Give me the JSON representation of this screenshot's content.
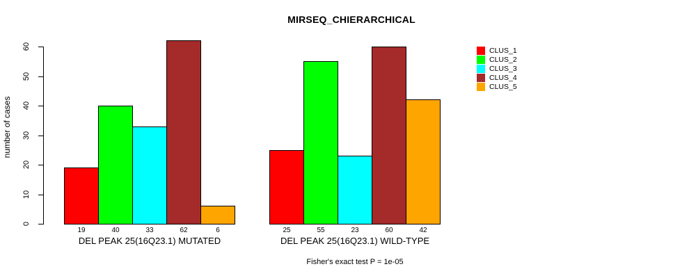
{
  "title": "MIRSEQ_CHIERARCHICAL",
  "y_axis": {
    "label": "number of cases"
  },
  "footer": "Fisher's exact test P = 1e-05",
  "chart_data": {
    "type": "bar",
    "title": "MIRSEQ_CHIERARCHICAL",
    "xlabel": "",
    "ylabel": "number of cases",
    "ylim": [
      0,
      63
    ],
    "yticks": [
      0,
      10,
      20,
      30,
      40,
      50,
      60
    ],
    "grid": false,
    "legend_position": "right",
    "bar_value_labels": true,
    "categories": [
      "DEL PEAK 25(16Q23.1) MUTATED",
      "DEL PEAK 25(16Q23.1) WILD-TYPE"
    ],
    "series": [
      {
        "name": "CLUS_1",
        "color": "#FF0000",
        "values": [
          19,
          25
        ]
      },
      {
        "name": "CLUS_2",
        "color": "#00FF00",
        "values": [
          40,
          55
        ]
      },
      {
        "name": "CLUS_3",
        "color": "#00FFFF",
        "values": [
          33,
          23
        ]
      },
      {
        "name": "CLUS_4",
        "color": "#A52A2A",
        "values": [
          62,
          60
        ]
      },
      {
        "name": "CLUS_5",
        "color": "#FFA500",
        "values": [
          6,
          42
        ]
      }
    ],
    "annotation": "Fisher's exact test P = 1e-05"
  }
}
